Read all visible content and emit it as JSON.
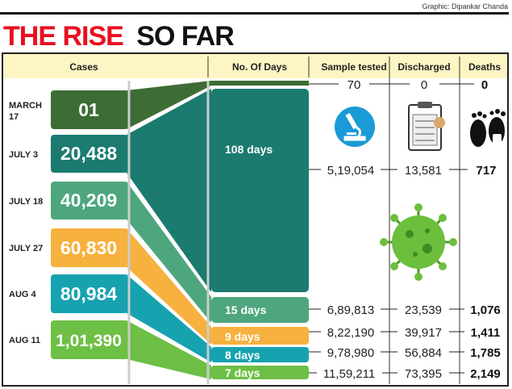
{
  "credit": "Graphic: Dipankar Chanda",
  "title": {
    "part1": "THE RISE",
    "part2": "SO FAR"
  },
  "colors": {
    "title_red": "#e8101f",
    "header_bg": "#fdf5c4",
    "march": "#3e6c35",
    "jul3": "#1b7b6f",
    "jul18": "#4ea67f",
    "jul27": "#f6b13f",
    "aug4": "#17a2b0",
    "aug11": "#6dbf45",
    "virus": "#6cbf3c"
  },
  "icons": [
    "microscope-icon",
    "clipboard-icon",
    "footprints-icon",
    "virus-icon"
  ],
  "chart_data": {
    "type": "table",
    "title": "THE RISE SO FAR",
    "columns": [
      "Cases",
      "No. Of Days",
      "Sample tested",
      "Discharged",
      "Deaths"
    ],
    "rows": [
      {
        "date": "MARCH 17",
        "cases": "01",
        "days": "",
        "tested": "70",
        "discharged": "0",
        "deaths": "0"
      },
      {
        "date": "JULY 3",
        "cases": "20,488",
        "days": "108 days",
        "tested": "5,19,054",
        "discharged": "13,581",
        "deaths": "717"
      },
      {
        "date": "JULY 18",
        "cases": "40,209",
        "days": "15 days",
        "tested": "6,89,813",
        "discharged": "23,539",
        "deaths": "1,076"
      },
      {
        "date": "JULY 27",
        "cases": "60,830",
        "days": "9 days",
        "tested": "8,22,190",
        "discharged": "39,917",
        "deaths": "1,411"
      },
      {
        "date": "AUG 4",
        "cases": "80,984",
        "days": "8 days",
        "tested": "9,78,980",
        "discharged": "56,884",
        "deaths": "1,785"
      },
      {
        "date": "AUG 11",
        "cases": "1,01,390",
        "days": "7 days",
        "tested": "11,59,211",
        "discharged": "73,395",
        "deaths": "2,149"
      }
    ]
  }
}
